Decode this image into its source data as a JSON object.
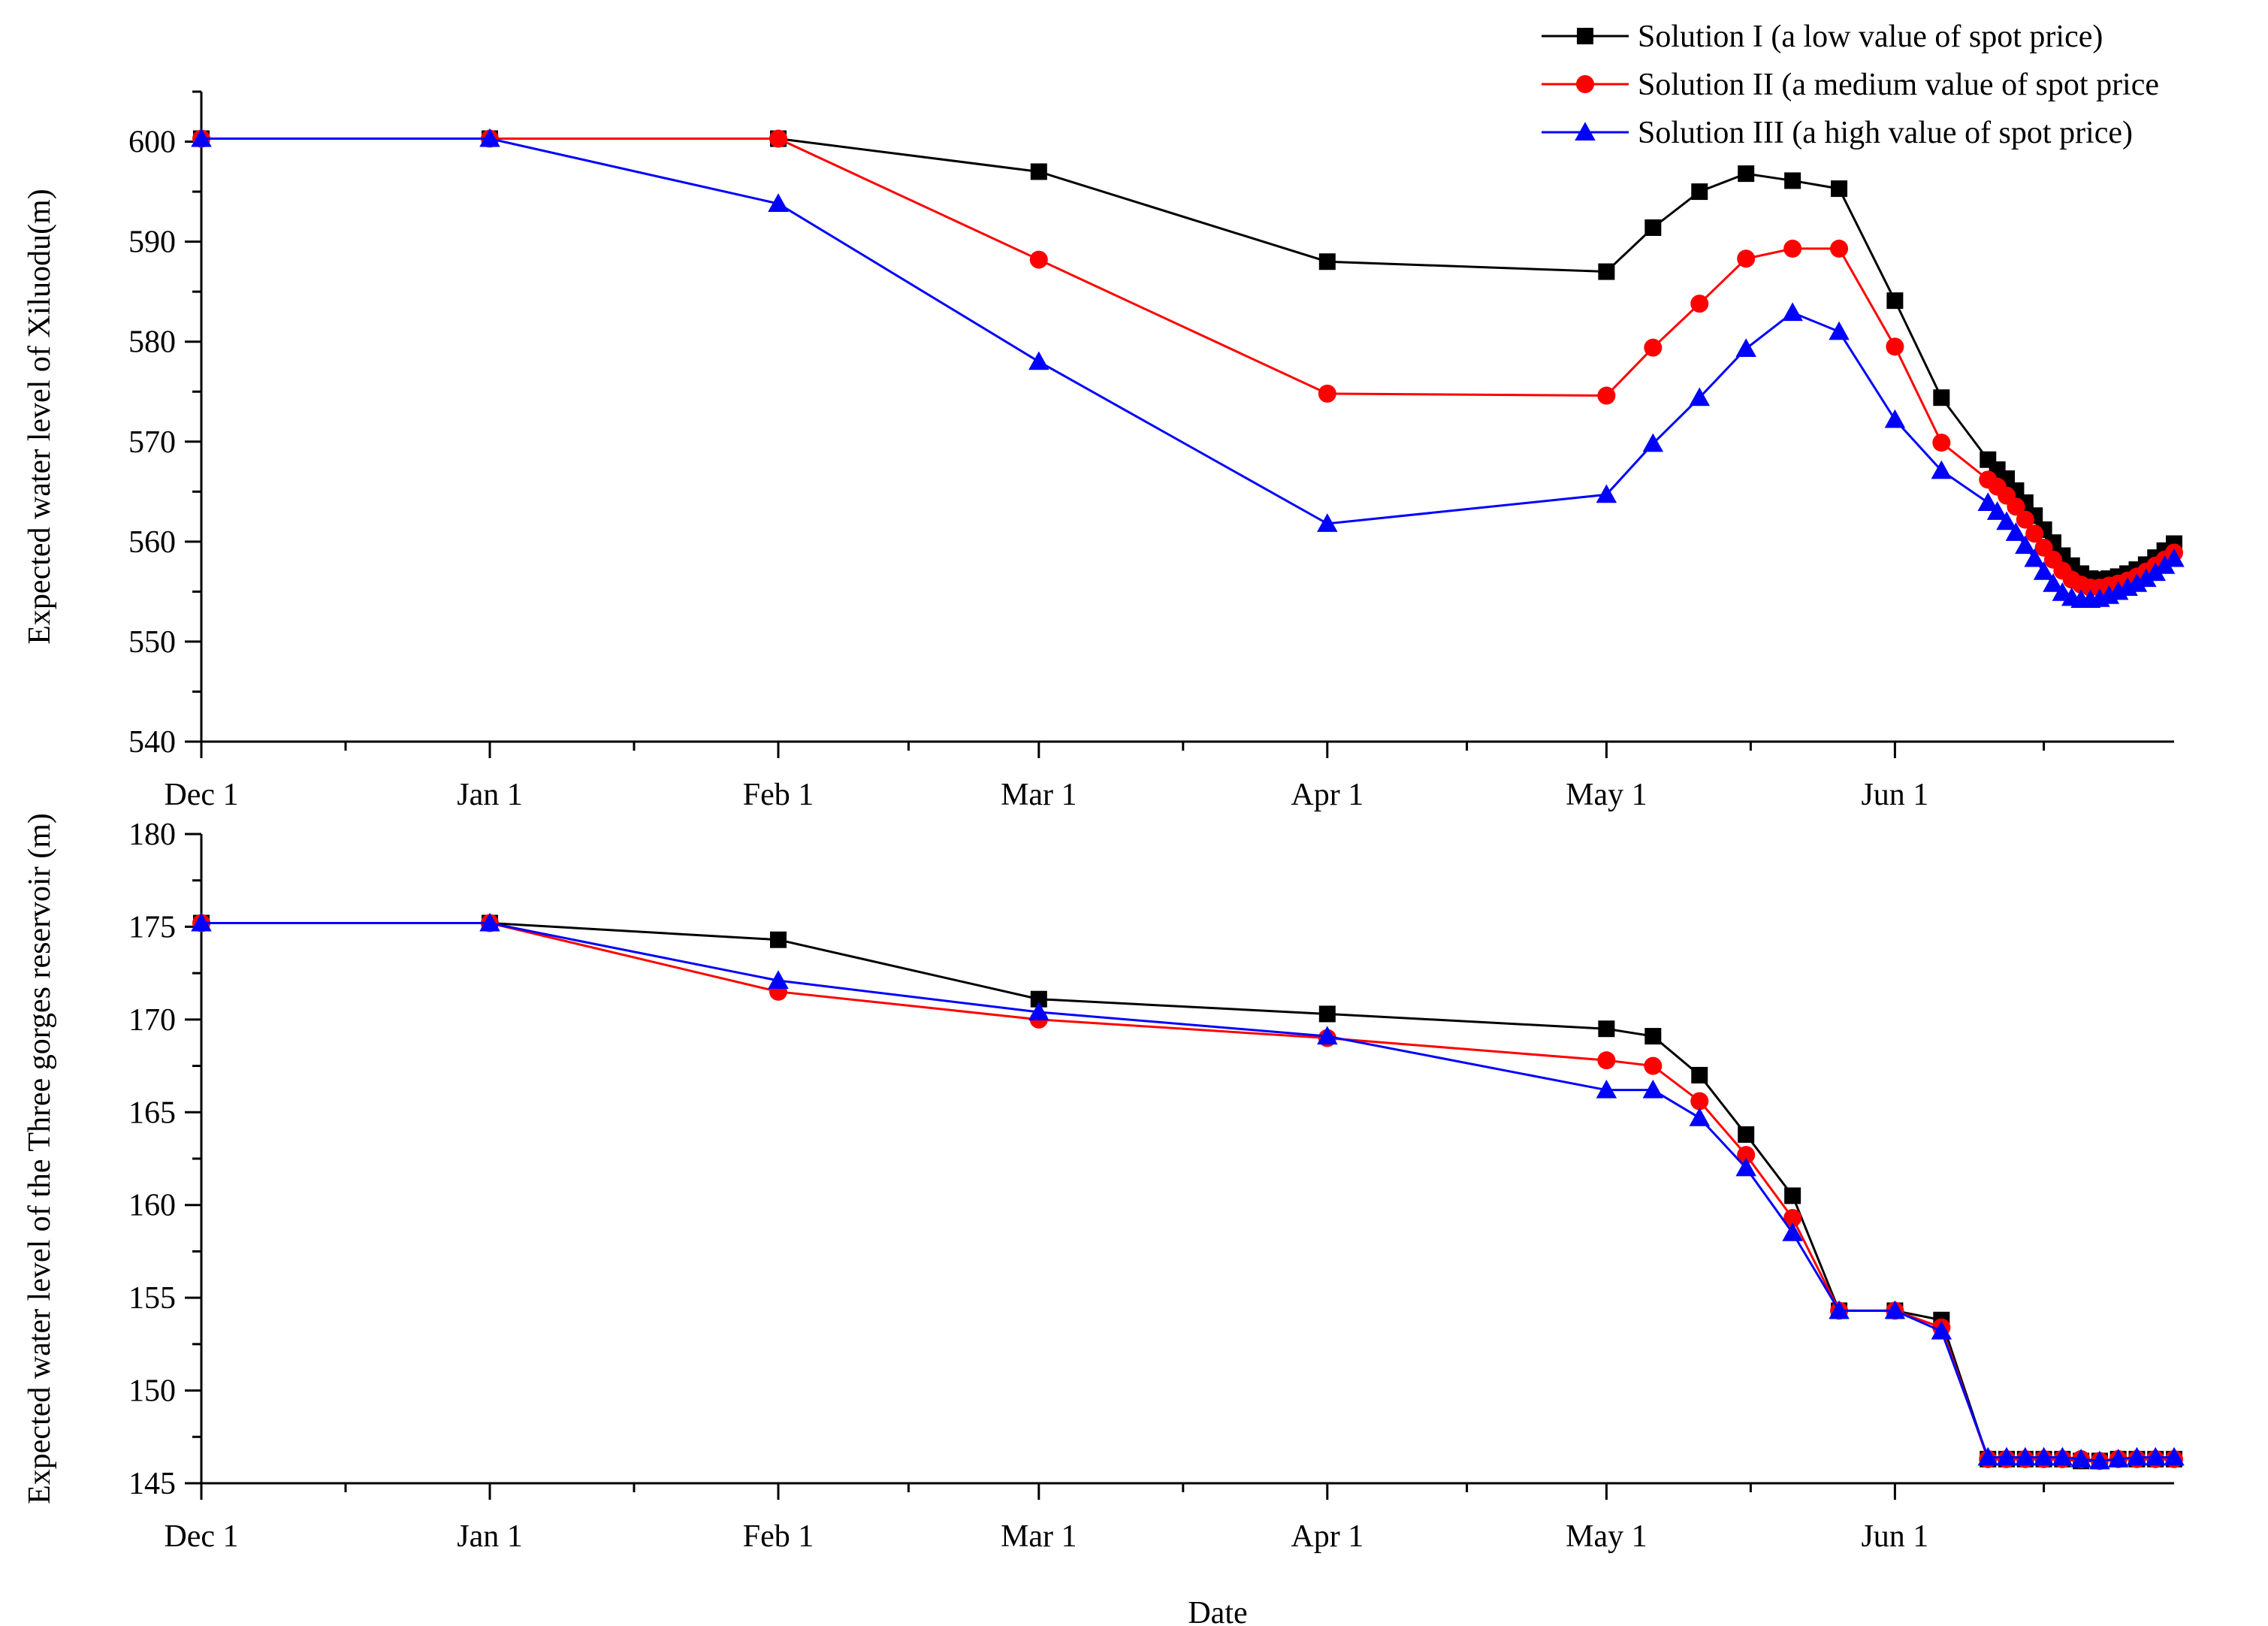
{
  "chart_data": [
    {
      "type": "line",
      "ylabel": "Expected water level of Xiluodu(m)",
      "xlabel": "",
      "ylim": [
        540,
        605
      ],
      "yticks": [
        540,
        550,
        560,
        570,
        580,
        590,
        600
      ],
      "xlim": [
        0,
        212
      ],
      "xticks": [
        {
          "label": "Dec 1",
          "day": 0
        },
        {
          "label": "Jan 1",
          "day": 31
        },
        {
          "label": "Feb 1",
          "day": 62
        },
        {
          "label": "Mar 1",
          "day": 90
        },
        {
          "label": "Apr 1",
          "day": 121
        },
        {
          "label": "May 1",
          "day": 151
        },
        {
          "label": "Jun 1",
          "day": 182
        }
      ],
      "series": [
        {
          "name": "Solution I (a low value of spot price)",
          "color": "#000000",
          "marker": "square",
          "points": [
            [
              0,
              600.3
            ],
            [
              31,
              600.3
            ],
            [
              62,
              600.3
            ],
            [
              90,
              597
            ],
            [
              121,
              588
            ],
            [
              151,
              587
            ],
            [
              156,
              591.4
            ],
            [
              161,
              595
            ],
            [
              166,
              596.8
            ],
            [
              171,
              596.1
            ],
            [
              176,
              595.3
            ],
            [
              182,
              584.1
            ],
            [
              187,
              574.4
            ],
            [
              192,
              568.2
            ],
            [
              193,
              567.2
            ],
            [
              194,
              566.3
            ],
            [
              195,
              565.1
            ],
            [
              196,
              563.9
            ],
            [
              197,
              562.6
            ],
            [
              198,
              561.2
            ],
            [
              199,
              559.9
            ],
            [
              200,
              558.6
            ],
            [
              201,
              557.6
            ],
            [
              202,
              556.8
            ],
            [
              203,
              556.3
            ],
            [
              204,
              556.2
            ],
            [
              205,
              556.3
            ],
            [
              206,
              556.5
            ],
            [
              207,
              556.8
            ],
            [
              208,
              557.2
            ],
            [
              209,
              557.7
            ],
            [
              210,
              558.4
            ],
            [
              211,
              559.1
            ],
            [
              212,
              559.8
            ]
          ]
        },
        {
          "name": "Solution II  (a medium value of spot price)",
          "color": "#ff0000",
          "marker": "circle",
          "points": [
            [
              0,
              600.3
            ],
            [
              31,
              600.3
            ],
            [
              62,
              600.3
            ],
            [
              90,
              588.2
            ],
            [
              121,
              574.8
            ],
            [
              151,
              574.6
            ],
            [
              156,
              579.4
            ],
            [
              161,
              583.8
            ],
            [
              166,
              588.3
            ],
            [
              171,
              589.3
            ],
            [
              176,
              589.3
            ],
            [
              182,
              579.5
            ],
            [
              187,
              569.9
            ],
            [
              192,
              566.2
            ],
            [
              193,
              565.5
            ],
            [
              194,
              564.6
            ],
            [
              195,
              563.5
            ],
            [
              196,
              562.2
            ],
            [
              197,
              560.8
            ],
            [
              198,
              559.4
            ],
            [
              199,
              558.2
            ],
            [
              200,
              557.1
            ],
            [
              201,
              556.2
            ],
            [
              202,
              555.7
            ],
            [
              203,
              555.4
            ],
            [
              204,
              555.4
            ],
            [
              205,
              555.6
            ],
            [
              206,
              555.8
            ],
            [
              207,
              556.1
            ],
            [
              208,
              556.5
            ],
            [
              209,
              557
            ],
            [
              210,
              557.6
            ],
            [
              211,
              558.2
            ],
            [
              212,
              558.9
            ]
          ]
        },
        {
          "name": "Solution III  (a high value of spot price)",
          "color": "#0000ff",
          "marker": "triangle",
          "points": [
            [
              0,
              600.3
            ],
            [
              31,
              600.3
            ],
            [
              62,
              593.8
            ],
            [
              90,
              578
            ],
            [
              121,
              561.8
            ],
            [
              151,
              564.7
            ],
            [
              156,
              569.8
            ],
            [
              161,
              574.4
            ],
            [
              166,
              579.3
            ],
            [
              171,
              582.9
            ],
            [
              176,
              581
            ],
            [
              182,
              572.2
            ],
            [
              187,
              567.1
            ],
            [
              192,
              563.9
            ],
            [
              193,
              563
            ],
            [
              194,
              562
            ],
            [
              195,
              560.9
            ],
            [
              196,
              559.6
            ],
            [
              197,
              558.3
            ],
            [
              198,
              557
            ],
            [
              199,
              555.8
            ],
            [
              200,
              554.9
            ],
            [
              201,
              554.4
            ],
            [
              202,
              554.2
            ],
            [
              203,
              554.2
            ],
            [
              204,
              554.3
            ],
            [
              205,
              554.6
            ],
            [
              206,
              555
            ],
            [
              207,
              555.4
            ],
            [
              208,
              555.8
            ],
            [
              209,
              556.3
            ],
            [
              210,
              556.9
            ],
            [
              211,
              557.6
            ],
            [
              212,
              558.3
            ]
          ]
        }
      ]
    },
    {
      "type": "line",
      "ylabel": "Expected water level of the Three gorges reservoir (m)",
      "xlabel": "Date",
      "ylim": [
        145,
        180
      ],
      "yticks": [
        145,
        150,
        155,
        160,
        165,
        170,
        175,
        180
      ],
      "xlim": [
        0,
        212
      ],
      "xticks": [
        {
          "label": "Dec 1",
          "day": 0
        },
        {
          "label": "Jan 1",
          "day": 31
        },
        {
          "label": "Feb 1",
          "day": 62
        },
        {
          "label": "Mar 1",
          "day": 90
        },
        {
          "label": "Apr 1",
          "day": 121
        },
        {
          "label": "May 1",
          "day": 151
        },
        {
          "label": "Jun 1",
          "day": 182
        }
      ],
      "series": [
        {
          "name": "Solution I (a low value of spot price)",
          "color": "#000000",
          "marker": "square",
          "points": [
            [
              0,
              175.2
            ],
            [
              31,
              175.2
            ],
            [
              62,
              174.3
            ],
            [
              90,
              171.1
            ],
            [
              121,
              170.3
            ],
            [
              151,
              169.5
            ],
            [
              156,
              169.1
            ],
            [
              161,
              167
            ],
            [
              166,
              163.8
            ],
            [
              171,
              160.5
            ],
            [
              176,
              154.3
            ],
            [
              182,
              154.3
            ],
            [
              187,
              153.8
            ],
            [
              192,
              146.3
            ],
            [
              194,
              146.3
            ],
            [
              196,
              146.3
            ],
            [
              198,
              146.3
            ],
            [
              200,
              146.3
            ],
            [
              202,
              146.2
            ],
            [
              204,
              146.2
            ],
            [
              206,
              146.3
            ],
            [
              208,
              146.3
            ],
            [
              210,
              146.3
            ],
            [
              212,
              146.3
            ]
          ]
        },
        {
          "name": "Solution II  (a medium value of spot price)",
          "color": "#ff0000",
          "marker": "circle",
          "points": [
            [
              0,
              175.2
            ],
            [
              31,
              175.2
            ],
            [
              62,
              171.5
            ],
            [
              90,
              170
            ],
            [
              121,
              169
            ],
            [
              151,
              167.8
            ],
            [
              156,
              167.5
            ],
            [
              161,
              165.6
            ],
            [
              166,
              162.7
            ],
            [
              171,
              159.3
            ],
            [
              176,
              154.3
            ],
            [
              182,
              154.3
            ],
            [
              187,
              153.4
            ],
            [
              192,
              146.3
            ],
            [
              194,
              146.3
            ],
            [
              196,
              146.3
            ],
            [
              198,
              146.3
            ],
            [
              200,
              146.3
            ],
            [
              202,
              146.3
            ],
            [
              204,
              146.2
            ],
            [
              206,
              146.3
            ],
            [
              208,
              146.3
            ],
            [
              210,
              146.3
            ],
            [
              212,
              146.3
            ]
          ]
        },
        {
          "name": "Solution III  (a high value of spot price)",
          "color": "#0000ff",
          "marker": "triangle",
          "points": [
            [
              0,
              175.2
            ],
            [
              31,
              175.2
            ],
            [
              62,
              172.1
            ],
            [
              90,
              170.4
            ],
            [
              121,
              169.1
            ],
            [
              151,
              166.2
            ],
            [
              156,
              166.2
            ],
            [
              161,
              164.7
            ],
            [
              166,
              162
            ],
            [
              171,
              158.5
            ],
            [
              176,
              154.3
            ],
            [
              182,
              154.3
            ],
            [
              187,
              153.2
            ],
            [
              192,
              146.4
            ],
            [
              194,
              146.4
            ],
            [
              196,
              146.4
            ],
            [
              198,
              146.4
            ],
            [
              200,
              146.4
            ],
            [
              202,
              146.3
            ],
            [
              204,
              146.2
            ],
            [
              206,
              146.3
            ],
            [
              208,
              146.4
            ],
            [
              210,
              146.4
            ],
            [
              212,
              146.4
            ]
          ]
        }
      ]
    }
  ],
  "legend": {
    "position": "top-right",
    "entries": [
      {
        "label": "Solution I (a low value of spot price)",
        "color": "#000000",
        "marker": "square"
      },
      {
        "label": "Solution II  (a medium value of spot price",
        "color": "#ff0000",
        "marker": "circle"
      },
      {
        "label": "Solution III  (a high value of spot price)",
        "color": "#0000ff",
        "marker": "triangle"
      }
    ]
  }
}
